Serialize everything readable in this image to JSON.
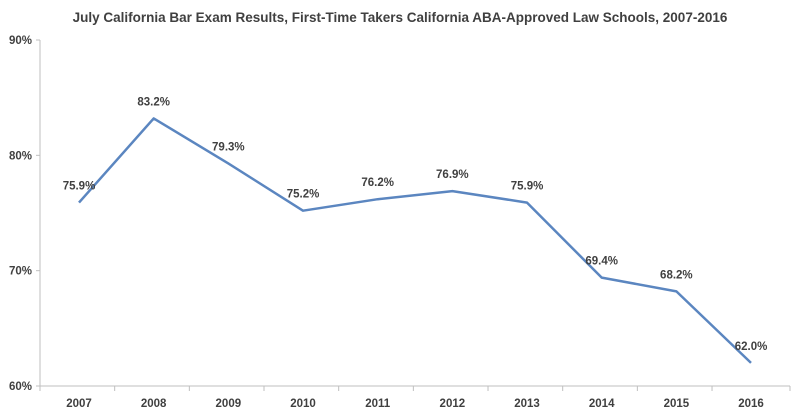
{
  "chart_data": {
    "type": "line",
    "title": "July California Bar Exam Results, First-Time Takers California ABA-Approved Law Schools, 2007-2016",
    "xlabel": "",
    "ylabel": "",
    "categories": [
      "2007",
      "2008",
      "2009",
      "2010",
      "2011",
      "2012",
      "2013",
      "2014",
      "2015",
      "2016"
    ],
    "series": [
      {
        "values": [
          75.9,
          83.2,
          79.3,
          75.2,
          76.2,
          76.9,
          75.9,
          69.4,
          68.2,
          62.0
        ],
        "data_labels": [
          "75.9%",
          "83.2%",
          "79.3%",
          "75.2%",
          "76.2%",
          "76.9%",
          "75.9%",
          "69.4%",
          "68.2%",
          "62.0%"
        ]
      }
    ],
    "ylim": [
      60,
      90
    ],
    "y_ticks": [
      60,
      70,
      80,
      90
    ],
    "y_tick_labels": [
      "60%",
      "70%",
      "80%",
      "90%"
    ],
    "grid": false,
    "colors": {
      "line": "#5b86c0",
      "axis": "#bfbfbf",
      "text": "#404040"
    }
  }
}
